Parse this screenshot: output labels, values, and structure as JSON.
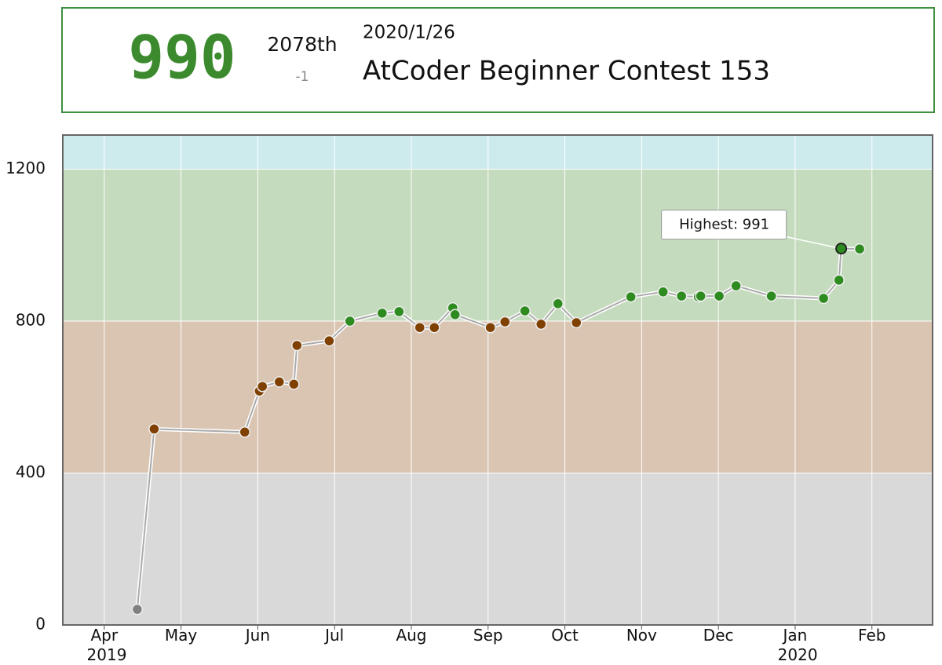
{
  "header": {
    "rating": "990",
    "rank": "2078th",
    "rank_diff": "-1",
    "date": "2020/1/26",
    "contest": "AtCoder Beginner Contest 153"
  },
  "chart_data": {
    "type": "line",
    "x": [
      0.43,
      0.65,
      1.83,
      2.02,
      2.06,
      2.28,
      2.47,
      2.51,
      2.93,
      3.2,
      3.62,
      3.84,
      4.11,
      4.3,
      4.54,
      4.57,
      5.03,
      5.22,
      5.48,
      5.69,
      5.91,
      6.15,
      6.86,
      7.28,
      7.52,
      7.74,
      7.77,
      8.01,
      8.23,
      8.69,
      9.37,
      9.57,
      9.6,
      9.84
    ],
    "series": [
      {
        "name": "Rating",
        "color": "#aaaaaa",
        "values": [
          41,
          516,
          508,
          616,
          628,
          640,
          634,
          736,
          748,
          800,
          821,
          825,
          783,
          783,
          835,
          817,
          783,
          798,
          827,
          792,
          846,
          796,
          864,
          877,
          866,
          864,
          866,
          866,
          893,
          866,
          860,
          908,
          991,
          990
        ]
      }
    ],
    "bands": [
      {
        "from": 0,
        "color": "#d9d9d9",
        "point_color": "#808080"
      },
      {
        "from": 400,
        "color": "#d9c5b2",
        "point_color": "#804000"
      },
      {
        "from": 800,
        "color": "#c5dbbd",
        "point_color": "#2e8b1f"
      },
      {
        "from": 1200,
        "color": "#cdeaed",
        "point_color": "#00a0c0"
      }
    ],
    "annotation": "Highest: 991",
    "xlim": [
      -0.54,
      10.79
    ],
    "xticks": [
      {
        "value": 0,
        "label": "Apr 2019"
      },
      {
        "value": 1,
        "label": "May"
      },
      {
        "value": 2,
        "label": "Jun"
      },
      {
        "value": 3,
        "label": "Jul"
      },
      {
        "value": 4,
        "label": "Aug"
      },
      {
        "value": 5,
        "label": "Sep"
      },
      {
        "value": 6,
        "label": "Oct"
      },
      {
        "value": 7,
        "label": "Nov"
      },
      {
        "value": 8,
        "label": "Dec"
      },
      {
        "value": 9,
        "label": "Jan 2020"
      },
      {
        "value": 10,
        "label": "Feb"
      }
    ],
    "ylim": [
      0,
      1290
    ],
    "yticks": [
      0,
      400,
      800,
      1200
    ],
    "grid": true
  }
}
